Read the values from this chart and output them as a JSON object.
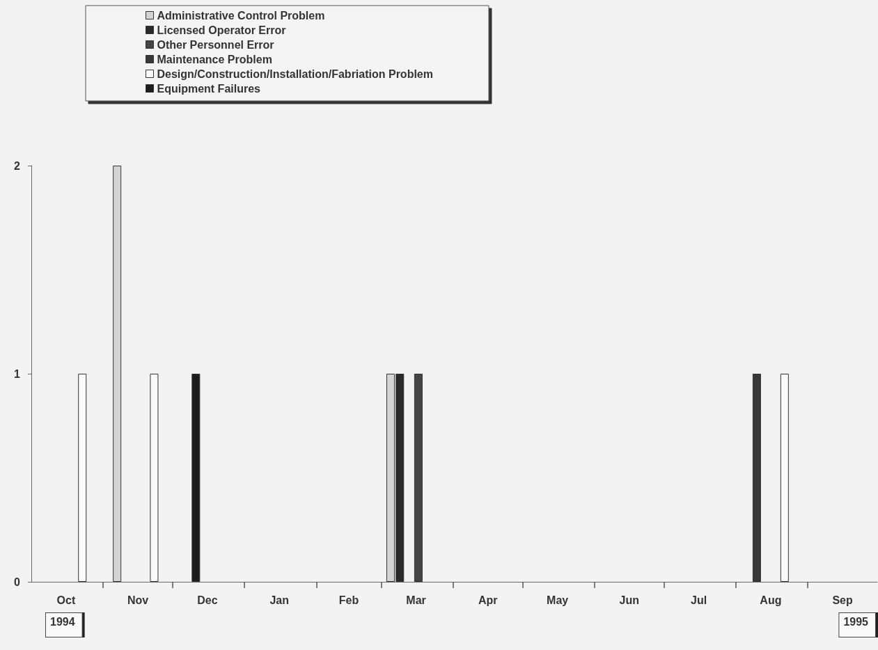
{
  "chart_data": {
    "type": "bar",
    "series": [
      {
        "name": "Administrative Control Problem",
        "color": "#d4d4d4",
        "x": [
          "1994-11-07",
          "1995-03-05"
        ],
        "values": [
          2,
          1
        ]
      },
      {
        "name": "Licensed Operator Error",
        "color": "#2a2a2a",
        "x": [
          "1995-03-09"
        ],
        "values": [
          1
        ]
      },
      {
        "name": "Other Personnel Error",
        "color": "#444444",
        "x": [
          "1995-03-17"
        ],
        "values": [
          1
        ]
      },
      {
        "name": "Maintenance Problem",
        "color": "#383838",
        "x": [
          "1995-08-10"
        ],
        "values": [
          1
        ]
      },
      {
        "name": "Design/Construction/Installation/Fabriation Problem",
        "color": "#fafafa",
        "x": [
          "1994-10-23",
          "1994-11-23",
          "1995-08-22"
        ],
        "values": [
          1,
          1,
          1
        ]
      },
      {
        "name": "Equipment Failures",
        "color": "#1c1c1c",
        "x": [
          "1994-12-11"
        ],
        "values": [
          1
        ]
      }
    ],
    "xlim": [
      "1994-10-01",
      "1995-10-01"
    ],
    "xticks": [
      {
        "value": "1994-10-16",
        "label": "Oct"
      },
      {
        "value": "1994-11-01",
        "label": null
      },
      {
        "value": "1994-11-16",
        "label": "Nov"
      },
      {
        "value": "1994-12-01",
        "label": null
      },
      {
        "value": "1994-12-16",
        "label": "Dec"
      },
      {
        "value": "1995-01-01",
        "label": null
      },
      {
        "value": "1995-01-16",
        "label": "Jan"
      },
      {
        "value": "1995-02-01",
        "label": null
      },
      {
        "value": "1995-02-15",
        "label": "Feb"
      },
      {
        "value": "1995-03-01",
        "label": null
      },
      {
        "value": "1995-03-16",
        "label": "Mar"
      },
      {
        "value": "1995-04-01",
        "label": null
      },
      {
        "value": "1995-04-16",
        "label": "Apr"
      },
      {
        "value": "1995-05-01",
        "label": null
      },
      {
        "value": "1995-05-16",
        "label": "May"
      },
      {
        "value": "1995-06-01",
        "label": null
      },
      {
        "value": "1995-06-16",
        "label": "Jun"
      },
      {
        "value": "1995-07-01",
        "label": null
      },
      {
        "value": "1995-07-16",
        "label": "Jul"
      },
      {
        "value": "1995-08-01",
        "label": null
      },
      {
        "value": "1995-08-16",
        "label": "Aug"
      },
      {
        "value": "1995-09-01",
        "label": null
      },
      {
        "value": "1995-09-16",
        "label": "Sep"
      }
    ],
    "ylim": [
      0,
      2
    ],
    "yticks": [
      0,
      1,
      2
    ],
    "grid": false,
    "legend": "top left",
    "annotations": [
      "1994",
      "1995"
    ]
  }
}
